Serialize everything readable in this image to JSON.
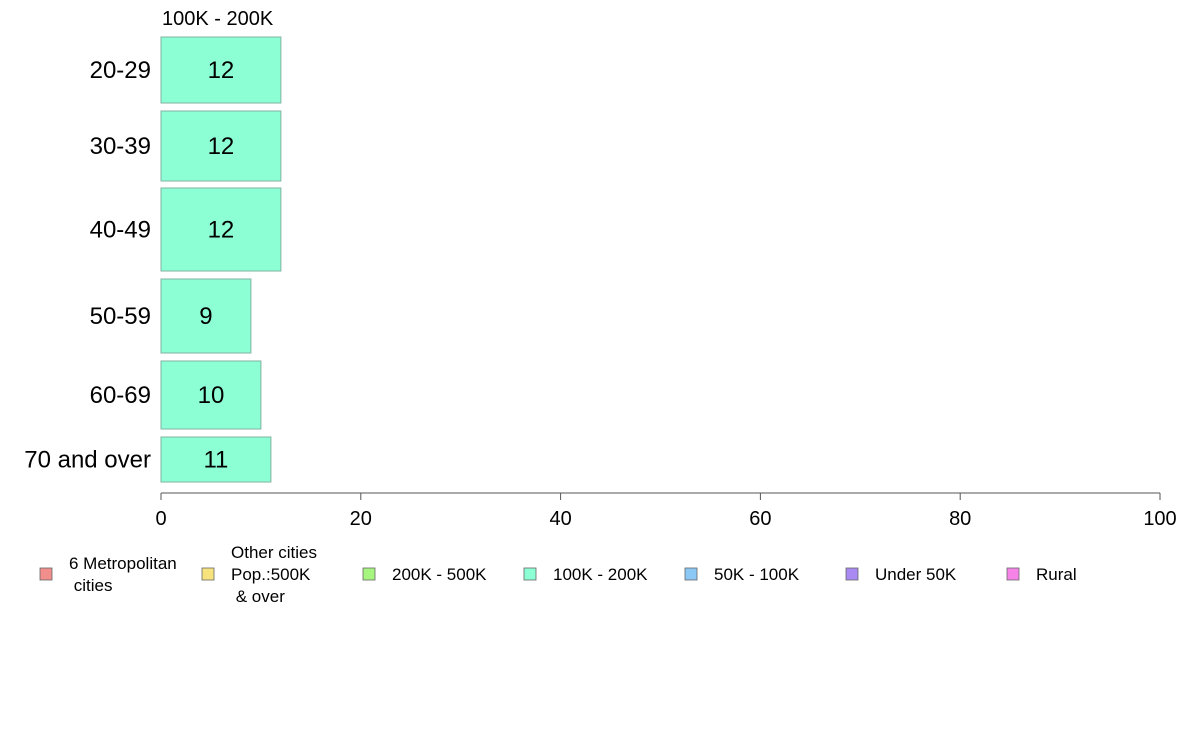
{
  "chart_data": {
    "type": "bar",
    "orientation": "horizontal",
    "title": "100K - 200K",
    "categories": [
      "20-29",
      "30-39",
      "40-49",
      "50-59",
      "60-69",
      "70 and over"
    ],
    "series": [
      {
        "name": "100K - 200K",
        "color": "#8cffd4",
        "values": [
          12,
          12,
          12,
          9,
          10,
          11
        ],
        "display_labels": [
          "12",
          "12",
          "12",
          "9",
          "10",
          "11"
        ]
      }
    ],
    "xlim": [
      0,
      100
    ],
    "xticks": [
      0,
      20,
      40,
      60,
      80,
      100
    ],
    "xtick_labels": [
      "0",
      "20",
      "40",
      "60",
      "80",
      "100"
    ],
    "grid": false,
    "legend_position": "bottom",
    "legend": [
      {
        "lines": [
          "6 Metropolitan",
          " cities"
        ],
        "color": "#f28e8c"
      },
      {
        "lines": [
          "Other cities",
          "Pop.:500K",
          " & over"
        ],
        "color": "#f7e37e"
      },
      {
        "lines": [
          "200K - 500K"
        ],
        "color": "#a6f57f"
      },
      {
        "lines": [
          "100K - 200K"
        ],
        "color": "#8cffd4"
      },
      {
        "lines": [
          "50K - 100K"
        ],
        "color": "#8cc8f5"
      },
      {
        "lines": [
          "Under 50K"
        ],
        "color": "#a98af2"
      },
      {
        "lines": [
          "Rural"
        ],
        "color": "#f583e8"
      }
    ]
  }
}
